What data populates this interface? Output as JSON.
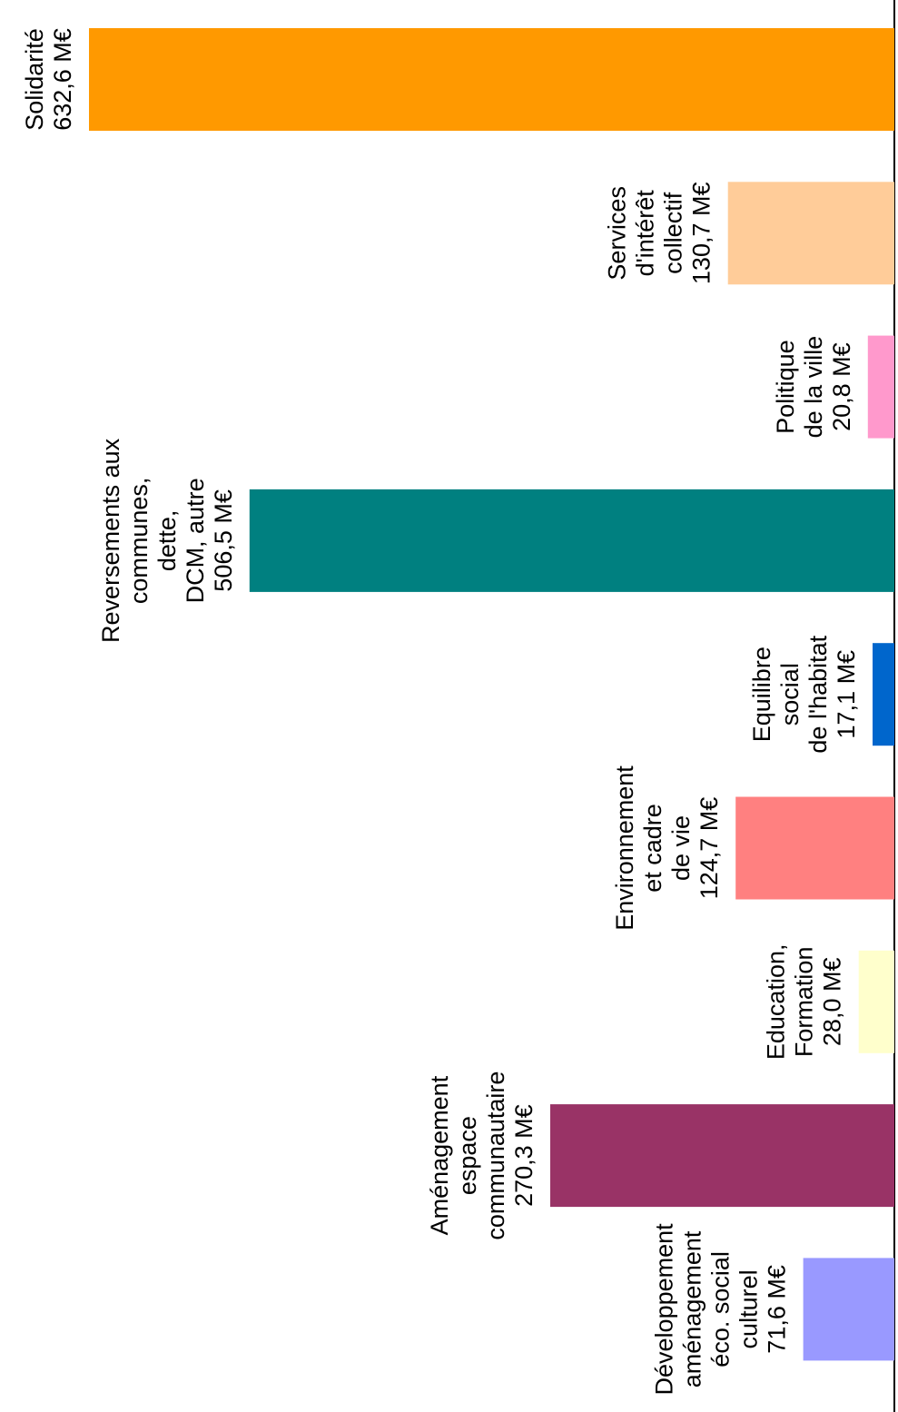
{
  "chart_data": {
    "type": "bar",
    "orientation": "horizontal",
    "rotated": "90deg-clockwise",
    "unit": "M€",
    "grid": false,
    "categories": [
      "Solidarité",
      "Services d'intérêt collectif",
      "Politique de la ville",
      "Reversements aux communes, dette, DCM, autre",
      "Equilibre social de l'habitat",
      "Environnement et cadre de vie",
      "Education, Formation",
      "Aménagement espace communautaire",
      "Développement aménagement éco. social culturel"
    ],
    "values": [
      632.6,
      130.7,
      20.8,
      506.5,
      17.1,
      124.7,
      28.0,
      270.3,
      71.6
    ],
    "colors": [
      "#ff9900",
      "#ffcc99",
      "#ff99cc",
      "#008080",
      "#0066cc",
      "#ff8080",
      "#ffffcc",
      "#993366",
      "#9999ff"
    ],
    "labels": [
      [
        "Solidarité",
        "632,6 M€"
      ],
      [
        "Services",
        "d'intérêt",
        "collectif",
        "130,7 M€"
      ],
      [
        "Politique",
        "de la ville",
        "20,8 M€"
      ],
      [
        "Reversements aux",
        "communes,",
        "dette,",
        "DCM, autre",
        "506,5 M€"
      ],
      [
        "Equilibre",
        "social",
        "de l'habitat",
        "17,1 M€"
      ],
      [
        "Environnement",
        "et cadre",
        "de vie",
        "124,7 M€"
      ],
      [
        "Education,",
        "Formation",
        "28,0 M€"
      ],
      [
        "Aménagement",
        "espace",
        "communautaire",
        "270,3 M€"
      ],
      [
        "Développement",
        "aménagement",
        "éco. social",
        "culturel",
        "71,6 M€"
      ]
    ]
  }
}
